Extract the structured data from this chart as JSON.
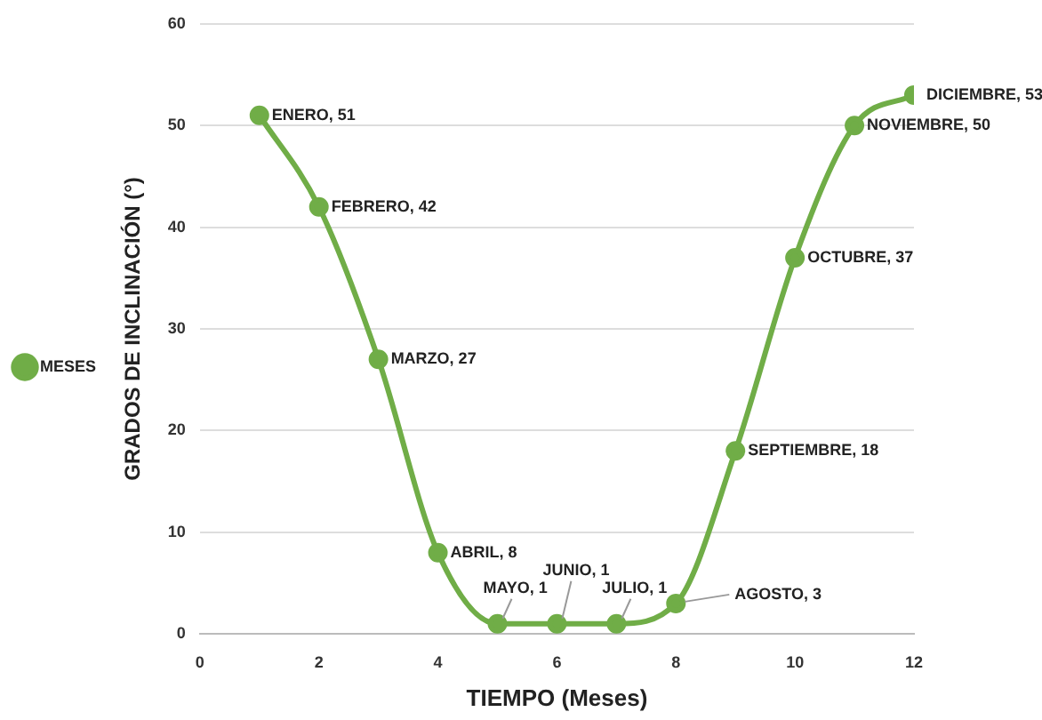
{
  "chart_data": {
    "type": "line",
    "xlabel": "TIEMPO (Meses)",
    "ylabel": "GRADOS DE INCLINACIÓN (°)",
    "x": [
      1,
      2,
      3,
      4,
      5,
      6,
      7,
      8,
      9,
      10,
      11,
      12
    ],
    "series": [
      {
        "name": "MESES",
        "color": "#70ad47",
        "values": [
          51,
          42,
          27,
          8,
          1,
          1,
          1,
          3,
          18,
          37,
          50,
          53
        ]
      }
    ],
    "xlim": [
      0,
      12
    ],
    "xticks": [
      0,
      2,
      4,
      6,
      8,
      10,
      12
    ],
    "ylim": [
      0,
      60
    ],
    "yticks": [
      0,
      10,
      20,
      30,
      40,
      50,
      60
    ],
    "grid": "y",
    "legend": "left",
    "marker": "circle",
    "line_style": "solid",
    "annotations": [
      {
        "text": "ENERO, 51",
        "x": 1,
        "y": 51
      },
      {
        "text": "FEBRERO, 42",
        "x": 2,
        "y": 42
      },
      {
        "text": "MARZO, 27",
        "x": 3,
        "y": 27
      },
      {
        "text": "ABRIL, 8",
        "x": 4,
        "y": 8
      },
      {
        "text": "MAYO, 1",
        "x": 5,
        "y": 1
      },
      {
        "text": "JUNIO, 1",
        "x": 6,
        "y": 1
      },
      {
        "text": "JULIO, 1",
        "x": 7,
        "y": 1
      },
      {
        "text": "AGOSTO, 3",
        "x": 8,
        "y": 3
      },
      {
        "text": "SEPTIEMBRE, 18",
        "x": 9,
        "y": 18
      },
      {
        "text": "OCTUBRE, 37",
        "x": 10,
        "y": 37
      },
      {
        "text": "NOVIEMBRE, 50",
        "x": 11,
        "y": 50
      },
      {
        "text": "DICIEMBRE, 53",
        "x": 12,
        "y": 53
      }
    ]
  }
}
